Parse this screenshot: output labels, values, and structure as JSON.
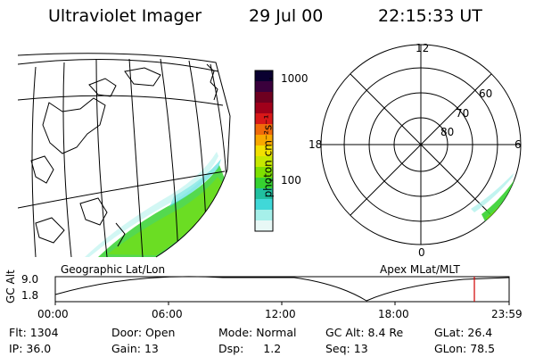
{
  "header": {
    "title": "Ultraviolet Imager",
    "date": "29 Jul 00",
    "time": "22:15:33 UT"
  },
  "colorbar": {
    "label": "photon cm⁻²s⁻¹",
    "ticks": [
      "1000",
      "100"
    ],
    "colors": [
      "#0a0030",
      "#3a003c",
      "#6e0020",
      "#a0001a",
      "#d81818",
      "#f06a0a",
      "#f8a800",
      "#f2e000",
      "#c6e800",
      "#7ee000",
      "#36d230",
      "#20c0a0",
      "#40d8d8",
      "#a6f0ea",
      "#e8f8f6"
    ]
  },
  "geo_panel": {
    "label": "Geographic Lat/Lon"
  },
  "polar_panel": {
    "label": "Apex MLat/MLT",
    "mlt_labels": {
      "top": "12",
      "left": "18",
      "right": "6",
      "bottom": "0"
    },
    "lat_labels": [
      "60",
      "70",
      "80"
    ]
  },
  "timeline": {
    "ylabel": "GC Alt",
    "yticks": [
      "9.0",
      "1.8"
    ],
    "xticks": [
      "00:00",
      "06:00",
      "12:00",
      "18:00",
      "23:59"
    ],
    "marker_color": "#d00000"
  },
  "info": {
    "row1": [
      {
        "label": "Flt:",
        "value": "1304"
      },
      {
        "label": "Door:",
        "value": "Open"
      },
      {
        "label": "Mode:",
        "value": "Normal"
      },
      {
        "label": "GC Alt:",
        "value": "8.4 Re"
      },
      {
        "label": "GLat:",
        "value": "26.4"
      }
    ],
    "row2": [
      {
        "label": "IP:",
        "value": "36.0"
      },
      {
        "label": "Gain:",
        "value": "13"
      },
      {
        "label": "Dsp:",
        "value": "1.2"
      },
      {
        "label": "Seq:",
        "value": "13"
      },
      {
        "label": "GLon:",
        "value": "78.5"
      }
    ]
  }
}
